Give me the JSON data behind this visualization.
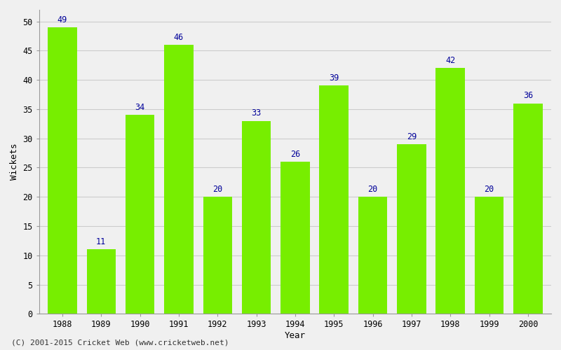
{
  "years": [
    "1988",
    "1989",
    "1990",
    "1991",
    "1992",
    "1993",
    "1994",
    "1995",
    "1996",
    "1997",
    "1998",
    "1999",
    "2000"
  ],
  "values": [
    49,
    11,
    34,
    46,
    20,
    33,
    26,
    39,
    20,
    29,
    42,
    20,
    36
  ],
  "bar_color": "#77ee00",
  "bar_edge_color": "#77ee00",
  "label_color": "#000099",
  "xlabel": "Year",
  "ylabel": "Wickets",
  "ylim": [
    0,
    52
  ],
  "yticks": [
    0,
    5,
    10,
    15,
    20,
    25,
    30,
    35,
    40,
    45,
    50
  ],
  "footnote": "(C) 2001-2015 Cricket Web (www.cricketweb.net)",
  "background_color": "#f0f0f0",
  "plot_background": "#f0f0f0",
  "grid_color": "#cccccc",
  "label_fontsize": 8.5,
  "axis_label_fontsize": 9,
  "footnote_fontsize": 8,
  "bar_width": 0.75
}
